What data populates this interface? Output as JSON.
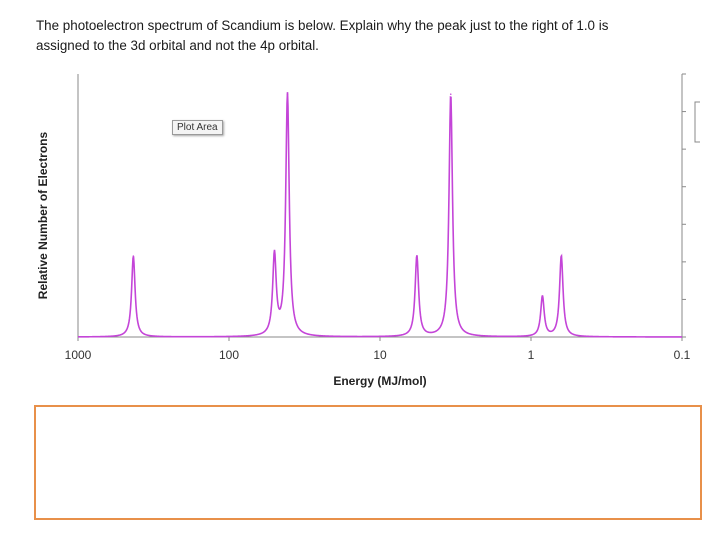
{
  "question": {
    "line1": "The photoelectron spectrum of Scandium is below.  Explain why the peak just to the right of 1.0 is",
    "line2": "assigned to the 3d orbital and not the 4p orbital."
  },
  "tooltip": "Plot Area",
  "chart_data": {
    "type": "line",
    "title": "",
    "xlabel": "Energy (MJ/mol)",
    "ylabel": "Relative Number of Electrons",
    "x_scale": "log",
    "x_reversed": true,
    "xlim": [
      1000,
      0.1
    ],
    "x_ticks": [
      "1000",
      "100",
      "10",
      "1",
      "0.1"
    ],
    "x_tick_values": [
      1000,
      100,
      10,
      1,
      0.1
    ],
    "ylim": [
      0,
      6.5
    ],
    "grid": false,
    "line_color": "#c445d8",
    "peaks": [
      {
        "x": 430,
        "y": 2
      },
      {
        "x": 50,
        "y": 2
      },
      {
        "x": 41,
        "y": 6
      },
      {
        "x": 5.7,
        "y": 2
      },
      {
        "x": 3.4,
        "y": 6
      },
      {
        "x": 0.84,
        "y": 1
      },
      {
        "x": 0.63,
        "y": 2
      }
    ]
  },
  "answer_box": {
    "border_color": "#e8904a"
  }
}
